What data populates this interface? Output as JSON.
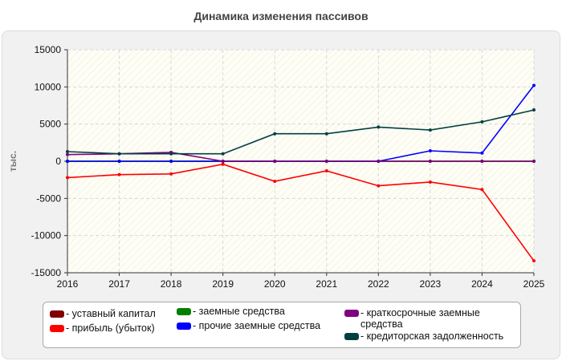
{
  "chart_data": {
    "type": "line",
    "title": "Динамика изменения пассивов",
    "ylabel": "тыс.",
    "xlabel": "",
    "ylim": [
      -15000,
      15000
    ],
    "yticks": [
      15000,
      10000,
      5000,
      0,
      -5000,
      -10000,
      -15000
    ],
    "categories": [
      "2016",
      "2017",
      "2018",
      "2019",
      "2020",
      "2021",
      "2022",
      "2023",
      "2024",
      "2025"
    ],
    "grid": true,
    "legend_position": "bottom",
    "series": [
      {
        "name": "- уставный капитал",
        "color": "#800000",
        "values": [
          0,
          0,
          0,
          0,
          0,
          0,
          0,
          0,
          0,
          0
        ]
      },
      {
        "name": "- прибыль (убыток)",
        "color": "#ff0000",
        "values": [
          -2200,
          -1800,
          -1700,
          -400,
          -2700,
          -1300,
          -3300,
          -2800,
          -3800,
          -13400
        ]
      },
      {
        "name": "- заемные средства",
        "color": "#008000",
        "values": [
          0,
          0,
          0,
          0,
          0,
          0,
          0,
          0,
          0,
          0
        ]
      },
      {
        "name": "- прочие заемные средства",
        "color": "#0000ff",
        "values": [
          0,
          0,
          0,
          0,
          0,
          0,
          0,
          1400,
          1100,
          10200
        ]
      },
      {
        "name": "- краткосрочные заемные средства",
        "color": "#800080",
        "values": [
          900,
          1000,
          1200,
          0,
          0,
          0,
          0,
          0,
          0,
          0
        ]
      },
      {
        "name": "- кредиторская задолженность",
        "color": "#004040",
        "values": [
          1300,
          1000,
          1000,
          1000,
          3700,
          3700,
          4600,
          4200,
          5300,
          6900
        ]
      }
    ]
  }
}
